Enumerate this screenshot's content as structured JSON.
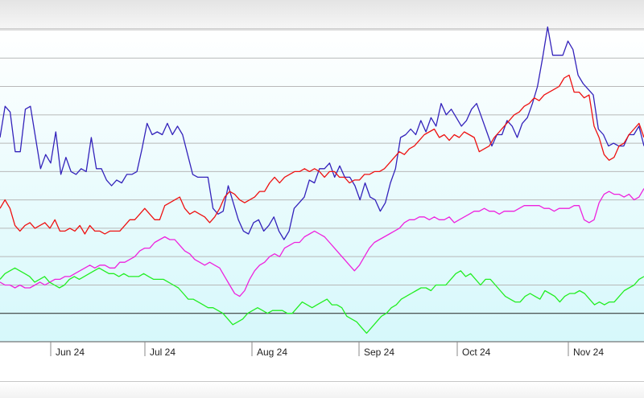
{
  "chart_data": {
    "type": "line",
    "x_ticks": [
      "Jun 24",
      "Jul 24",
      "Aug 24",
      "Sep 24",
      "Oct 24",
      "Nov 24"
    ],
    "ylim": [
      0,
      11
    ],
    "baseline": 1,
    "grid": true,
    "legend": "none",
    "series": [
      {
        "color": "#3322bb",
        "values": [
          7.2,
          8.3,
          8.1,
          6.7,
          6.7,
          8.2,
          8.3,
          7.2,
          6.1,
          6.6,
          6.3,
          7.4,
          5.9,
          6.5,
          6.0,
          5.9,
          6.1,
          6.0,
          7.2,
          6.1,
          6.1,
          5.7,
          5.5,
          5.7,
          5.6,
          5.9,
          5.9,
          6.0,
          6.8,
          7.7,
          7.3,
          7.4,
          7.3,
          7.7,
          7.3,
          7.6,
          7.3,
          6.6,
          5.9,
          5.8,
          5.8,
          5.8,
          4.7,
          4.5,
          4.6,
          5.5,
          4.9,
          4.3,
          3.9,
          3.8,
          4.2,
          4.3,
          3.9,
          4.1,
          4.4,
          3.9,
          3.6,
          3.9,
          4.7,
          4.9,
          5.1,
          5.7,
          5.6,
          6.1,
          6.1,
          6.3,
          5.8,
          6.2,
          5.8,
          5.8,
          5.5,
          5.0,
          5.6,
          5.1,
          5.0,
          4.6,
          4.9,
          5.6,
          6.1,
          7.2,
          7.3,
          7.5,
          7.3,
          7.8,
          7.4,
          7.9,
          7.6,
          8.4,
          8.0,
          8.2,
          7.9,
          7.6,
          7.8,
          8.2,
          8.4,
          7.9,
          7.4,
          6.9,
          7.3,
          7.3,
          7.8,
          7.6,
          7.2,
          7.7,
          7.9,
          8.4,
          9.0,
          10.0,
          11.1,
          10.1,
          10.1,
          10.1,
          10.6,
          10.3,
          9.4,
          9.1,
          8.9,
          8.7,
          7.5,
          7.3,
          6.9,
          7.0,
          6.9,
          6.9,
          7.3,
          7.3,
          7.6,
          6.9
        ]
      },
      {
        "color": "#ee1111",
        "values": [
          4.7,
          5.0,
          4.7,
          4.1,
          3.9,
          4.1,
          4.2,
          4.0,
          4.1,
          4.2,
          4.0,
          4.3,
          3.9,
          3.9,
          4.0,
          3.9,
          4.1,
          3.8,
          4.1,
          3.9,
          3.9,
          3.8,
          3.9,
          3.9,
          3.9,
          4.1,
          4.3,
          4.3,
          4.5,
          4.7,
          4.5,
          4.3,
          4.3,
          4.8,
          4.9,
          5.0,
          5.1,
          4.7,
          4.5,
          4.6,
          4.5,
          4.4,
          4.2,
          4.4,
          4.7,
          5.1,
          5.3,
          5.2,
          5.0,
          4.9,
          5.0,
          5.1,
          5.3,
          5.3,
          5.6,
          5.8,
          5.6,
          5.8,
          5.9,
          6.0,
          6.0,
          6.1,
          6.0,
          6.1,
          6.0,
          5.8,
          6.0,
          6.0,
          5.8,
          5.8,
          5.6,
          5.7,
          5.7,
          5.9,
          5.9,
          6.0,
          6.0,
          6.1,
          6.3,
          6.5,
          6.7,
          6.6,
          6.8,
          6.9,
          7.1,
          7.3,
          7.4,
          7.5,
          7.2,
          7.3,
          7.1,
          7.3,
          7.2,
          7.4,
          7.3,
          7.2,
          6.7,
          6.8,
          6.9,
          7.2,
          7.4,
          7.6,
          7.8,
          8.0,
          8.1,
          8.3,
          8.4,
          8.6,
          8.5,
          8.7,
          8.8,
          8.9,
          9.0,
          9.3,
          9.4,
          8.8,
          8.8,
          8.6,
          8.7,
          7.6,
          7.2,
          6.6,
          6.4,
          6.5,
          6.9,
          7.0,
          7.3,
          7.5,
          7.7,
          7.2
        ]
      },
      {
        "color": "#ee22dd",
        "values": [
          2.1,
          2.0,
          2.0,
          1.9,
          2.0,
          1.9,
          1.9,
          2.0,
          2.1,
          2.0,
          2.1,
          2.2,
          2.2,
          2.3,
          2.3,
          2.4,
          2.5,
          2.6,
          2.7,
          2.6,
          2.7,
          2.7,
          2.6,
          2.6,
          2.8,
          2.8,
          2.9,
          3.0,
          3.2,
          3.3,
          3.3,
          3.5,
          3.6,
          3.7,
          3.6,
          3.6,
          3.4,
          3.2,
          3.1,
          2.9,
          2.8,
          2.7,
          2.8,
          2.7,
          2.6,
          2.3,
          2.0,
          1.7,
          1.6,
          1.8,
          2.2,
          2.5,
          2.7,
          2.8,
          3.0,
          3.1,
          3.0,
          3.3,
          3.4,
          3.5,
          3.5,
          3.7,
          3.8,
          3.9,
          3.8,
          3.7,
          3.5,
          3.3,
          3.1,
          2.9,
          2.7,
          2.5,
          2.7,
          3.0,
          3.3,
          3.5,
          3.6,
          3.7,
          3.8,
          3.9,
          4.0,
          4.2,
          4.3,
          4.3,
          4.4,
          4.4,
          4.3,
          4.4,
          4.3,
          4.3,
          4.4,
          4.2,
          4.3,
          4.4,
          4.5,
          4.6,
          4.6,
          4.7,
          4.6,
          4.6,
          4.5,
          4.6,
          4.6,
          4.6,
          4.7,
          4.8,
          4.8,
          4.8,
          4.8,
          4.7,
          4.7,
          4.6,
          4.7,
          4.7,
          4.7,
          4.8,
          4.8,
          4.3,
          4.2,
          4.3,
          4.9,
          5.2,
          5.3,
          5.2,
          5.2,
          5.1,
          5.2,
          5.0,
          5.1,
          5.4
        ]
      },
      {
        "color": "#22ee22",
        "values": [
          2.2,
          2.4,
          2.5,
          2.6,
          2.5,
          2.4,
          2.3,
          2.1,
          2.2,
          2.3,
          2.1,
          2.0,
          1.9,
          2.0,
          2.2,
          2.3,
          2.2,
          2.3,
          2.4,
          2.5,
          2.6,
          2.5,
          2.4,
          2.4,
          2.3,
          2.4,
          2.3,
          2.3,
          2.3,
          2.4,
          2.3,
          2.2,
          2.2,
          2.2,
          2.1,
          2.0,
          1.9,
          1.7,
          1.5,
          1.5,
          1.4,
          1.3,
          1.2,
          1.2,
          1.1,
          1.0,
          0.8,
          0.6,
          0.7,
          0.8,
          1.0,
          1.1,
          1.2,
          1.1,
          1.0,
          1.1,
          1.1,
          1.1,
          1.0,
          1.0,
          1.2,
          1.4,
          1.3,
          1.2,
          1.3,
          1.4,
          1.5,
          1.3,
          1.3,
          1.2,
          0.9,
          0.8,
          0.7,
          0.5,
          0.3,
          0.5,
          0.7,
          0.9,
          1.0,
          1.2,
          1.3,
          1.5,
          1.6,
          1.7,
          1.8,
          1.9,
          1.9,
          1.8,
          2.0,
          2.0,
          2.0,
          2.2,
          2.4,
          2.5,
          2.3,
          2.4,
          2.2,
          2.0,
          2.2,
          2.2,
          2.0,
          1.8,
          1.6,
          1.5,
          1.4,
          1.4,
          1.6,
          1.7,
          1.6,
          1.5,
          1.8,
          1.7,
          1.6,
          1.4,
          1.6,
          1.7,
          1.7,
          1.8,
          1.7,
          1.5,
          1.3,
          1.4,
          1.3,
          1.4,
          1.4,
          1.6,
          1.8,
          1.9,
          2.0,
          2.2,
          2.3
        ]
      }
    ]
  }
}
